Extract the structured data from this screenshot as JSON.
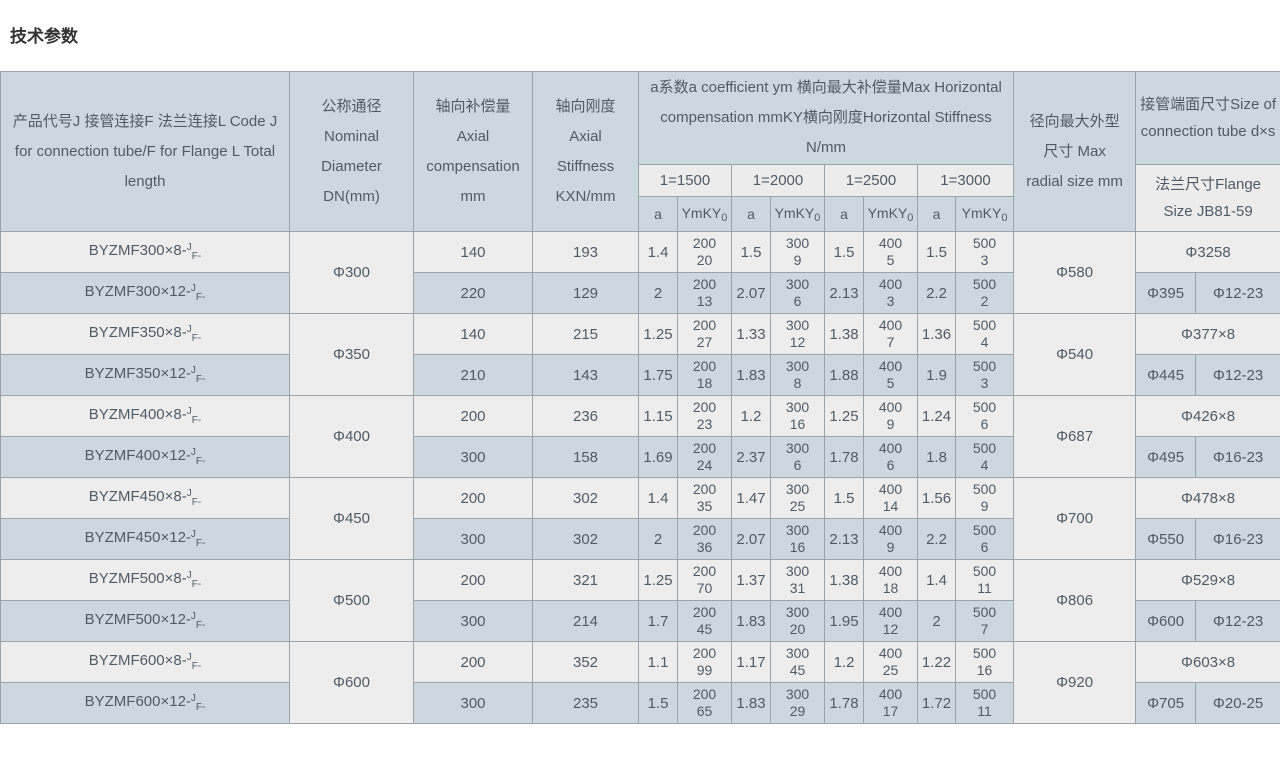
{
  "page": {
    "title": "技术参数"
  },
  "colors": {
    "header_bg": "#ccd8e0",
    "subheader_bg": "#ececec",
    "row_light": "#ededee",
    "row_dark": "#cbd8e0",
    "border": "#9ba3ab",
    "text": "#4f5b66"
  },
  "table": {
    "header": {
      "product": "产品代号J 接管连接F 法兰连接L Code J for connection tube/F for Flange L Total length",
      "nominal": "公称通径Nominal Diameter DN(mm)",
      "axial_comp": "轴向补偿量Axial compensation mm",
      "axial_stiff": "轴向刚度Axial Stiffness KXN/mm",
      "horizontal_group": "a系数a coefficient ym 横向最大补偿量Max Horizontal compensation mmKY横向刚度Horizontal Stiffness N/mm",
      "l_values": [
        "1=1500",
        "1=2000",
        "1=2500",
        "1=3000"
      ],
      "a_label": "a",
      "ymky_label": "YmKY",
      "ymky_sub": "0",
      "radial": "径向最大外型尺寸 Max radial size mm",
      "tube_size": "接管端面尺寸Size of connection tube d×s",
      "flange_size": "法兰尺寸Flange Size JB81-59"
    },
    "groups": [
      {
        "nominal": "Φ300",
        "radial": "Φ580",
        "tube": "Φ3258",
        "flange_d": "Φ395",
        "flange_size": "Φ12-23",
        "rows": [
          {
            "code_base": "BYZMF300×8-",
            "code_sup": "J",
            "code_sub": "F-",
            "comp": "140",
            "stiff": "193",
            "cells": [
              "1.4",
              "200\n20",
              "1.5",
              "300\n9",
              "1.5",
              "400\n5",
              "1.5",
              "500\n3"
            ]
          },
          {
            "code_base": "BYZMF300×12-",
            "code_sup": "J",
            "code_sub": "F-",
            "comp": "220",
            "stiff": "129",
            "cells": [
              "2",
              "200\n13",
              "2.07",
              "300\n6",
              "2.13",
              "400\n3",
              "2.2",
              "500\n2"
            ]
          }
        ]
      },
      {
        "nominal": "Φ350",
        "radial": "Φ540",
        "tube": "Φ377×8",
        "flange_d": "Φ445",
        "flange_size": "Φ12-23",
        "rows": [
          {
            "code_base": "BYZMF350×8-",
            "code_sup": "J",
            "code_sub": "F-",
            "comp": "140",
            "stiff": "215",
            "cells": [
              "1.25",
              "200\n27",
              "1.33",
              "300\n12",
              "1.38",
              "400\n7",
              "1.36",
              "500\n4"
            ]
          },
          {
            "code_base": "BYZMF350×12-",
            "code_sup": "J",
            "code_sub": "F-",
            "comp": "210",
            "stiff": "143",
            "cells": [
              "1.75",
              "200\n18",
              "1.83",
              "300\n8",
              "1.88",
              "400\n5",
              "1.9",
              "500\n3"
            ]
          }
        ]
      },
      {
        "nominal": "Φ400",
        "radial": "Φ687",
        "tube": "Φ426×8",
        "flange_d": "Φ495",
        "flange_size": "Φ16-23",
        "rows": [
          {
            "code_base": "BYZMF400×8-",
            "code_sup": "J",
            "code_sub": "F-",
            "comp": "200",
            "stiff": "236",
            "cells": [
              "1.15",
              "200\n23",
              "1.2",
              "300\n16",
              "1.25",
              "400\n9",
              "1.24",
              "500\n6"
            ]
          },
          {
            "code_base": "BYZMF400×12-",
            "code_sup": "J",
            "code_sub": "F-",
            "comp": "300",
            "stiff": "158",
            "cells": [
              "1.69",
              "200\n24",
              "2.37",
              "300\n6",
              "1.78",
              "400\n6",
              "1.8",
              "500\n4"
            ]
          }
        ]
      },
      {
        "nominal": "Φ450",
        "radial": "Φ700",
        "tube": "Φ478×8",
        "flange_d": "Φ550",
        "flange_size": "Φ16-23",
        "rows": [
          {
            "code_base": "BYZMF450×8-",
            "code_sup": "J",
            "code_sub": "F-",
            "comp": "200",
            "stiff": "302",
            "cells": [
              "1.4",
              "200\n35",
              "1.47",
              "300\n25",
              "1.5",
              "400\n14",
              "1.56",
              "500\n9"
            ]
          },
          {
            "code_base": "BYZMF450×12-",
            "code_sup": "J",
            "code_sub": "F-",
            "comp": "300",
            "stiff": "302",
            "cells": [
              "2",
              "200\n36",
              "2.07",
              "300\n16",
              "2.13",
              "400\n9",
              "2.2",
              "500\n6"
            ]
          }
        ]
      },
      {
        "nominal": "Φ500",
        "radial": "Φ806",
        "tube": "Φ529×8",
        "flange_d": "Φ600",
        "flange_size": "Φ12-23",
        "rows": [
          {
            "code_base": "BYZMF500×8-",
            "code_sup": "J",
            "code_sub": "F-",
            "comp": "200",
            "stiff": "321",
            "cells": [
              "1.25",
              "200\n70",
              "1.37",
              "300\n31",
              "1.38",
              "400\n18",
              "1.4",
              "500\n11"
            ]
          },
          {
            "code_base": "BYZMF500×12-",
            "code_sup": "J",
            "code_sub": "F-",
            "comp": "300",
            "stiff": "214",
            "cells": [
              "1.7",
              "200\n45",
              "1.83",
              "300\n20",
              "1.95",
              "400\n12",
              "2",
              "500\n7"
            ]
          }
        ]
      },
      {
        "nominal": "Φ600",
        "radial": "Φ920",
        "tube": "Φ603×8",
        "flange_d": "Φ705",
        "flange_size": "Φ20-25",
        "rows": [
          {
            "code_base": "BYZMF600×8-",
            "code_sup": "J",
            "code_sub": "F-",
            "comp": "200",
            "stiff": "352",
            "cells": [
              "1.1",
              "200\n99",
              "1.17",
              "300\n45",
              "1.2",
              "400\n25",
              "1.22",
              "500\n16"
            ]
          },
          {
            "code_base": "BYZMF600×12-",
            "code_sup": "J",
            "code_sub": "F-",
            "comp": "300",
            "stiff": "235",
            "cells": [
              "1.5",
              "200\n65",
              "1.83",
              "300\n29",
              "1.78",
              "400\n17",
              "1.72",
              "500\n11"
            ]
          }
        ]
      }
    ]
  }
}
